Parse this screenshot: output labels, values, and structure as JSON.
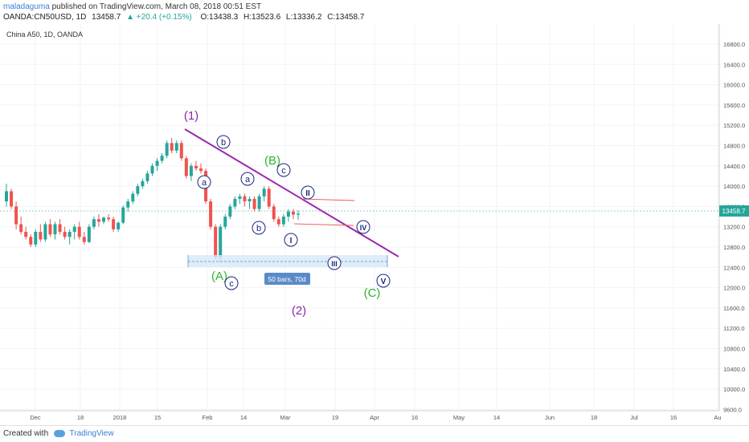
{
  "header": {
    "author": "maladaguma",
    "published": "published on TradingView.com, March 08, 2018 00:51 EST",
    "symbol": "OANDA:CN50USD, 1D",
    "last": "13458.7",
    "change": "+20.4 (+0.15%)",
    "open": "O:13438.3",
    "high": "H:13523.6",
    "low": "L:13336.2",
    "close": "C:13458.7"
  },
  "chart_title": "China A50, 1D, OANDA",
  "footer": {
    "created_with": "Created with",
    "brand": "TradingView"
  },
  "colors": {
    "up": "#26a69a",
    "down": "#ef5350",
    "trend": "#9c27b0",
    "wave_blue": "#1a237e",
    "green_label": "#2db52d",
    "purple_label": "#8e24aa"
  },
  "chart_data": {
    "type": "candlestick",
    "y_ticks": [
      "16800.0",
      "16400.0",
      "16000.0",
      "15600.0",
      "15200.0",
      "14800.0",
      "14400.0",
      "14000.0",
      "13600.0",
      "13200.0",
      "12800.0",
      "12400.0",
      "12000.0",
      "11600.0",
      "11200.0",
      "10800.0",
      "10400.0",
      "10000.0",
      "9600.0"
    ],
    "x_ticks": [
      "Dec",
      "18",
      "2018",
      "15",
      "Feb",
      "14",
      "Mar",
      "19",
      "Apr",
      "16",
      "May",
      "14",
      "Jun",
      "18",
      "Jul",
      "16",
      "Au"
    ],
    "last_price_label": "13458.7",
    "ylim": [
      9400,
      17000
    ],
    "grid": true,
    "candles": [
      {
        "o": 13700,
        "h": 14050,
        "l": 13600,
        "c": 13900
      },
      {
        "o": 13900,
        "h": 13950,
        "l": 13550,
        "c": 13600
      },
      {
        "o": 13600,
        "h": 13700,
        "l": 13150,
        "c": 13250
      },
      {
        "o": 13250,
        "h": 13400,
        "l": 13050,
        "c": 13100
      },
      {
        "o": 13100,
        "h": 13200,
        "l": 12950,
        "c": 13000
      },
      {
        "o": 13000,
        "h": 13050,
        "l": 12800,
        "c": 12850
      },
      {
        "o": 12850,
        "h": 13150,
        "l": 12800,
        "c": 13100
      },
      {
        "o": 13100,
        "h": 13250,
        "l": 12900,
        "c": 12950
      },
      {
        "o": 12950,
        "h": 13300,
        "l": 12900,
        "c": 13250
      },
      {
        "o": 13250,
        "h": 13350,
        "l": 13000,
        "c": 13050
      },
      {
        "o": 13050,
        "h": 13300,
        "l": 12950,
        "c": 13250
      },
      {
        "o": 13250,
        "h": 13350,
        "l": 13050,
        "c": 13100
      },
      {
        "o": 13100,
        "h": 13200,
        "l": 12950,
        "c": 13000
      },
      {
        "o": 13000,
        "h": 13150,
        "l": 12850,
        "c": 13100
      },
      {
        "o": 13100,
        "h": 13250,
        "l": 12950,
        "c": 13200
      },
      {
        "o": 13200,
        "h": 13300,
        "l": 12950,
        "c": 13000
      },
      {
        "o": 13000,
        "h": 13100,
        "l": 12850,
        "c": 12900
      },
      {
        "o": 12900,
        "h": 13250,
        "l": 12880,
        "c": 13200
      },
      {
        "o": 13200,
        "h": 13400,
        "l": 13150,
        "c": 13350
      },
      {
        "o": 13350,
        "h": 13450,
        "l": 13200,
        "c": 13300
      },
      {
        "o": 13300,
        "h": 13400,
        "l": 13250,
        "c": 13380
      },
      {
        "o": 13380,
        "h": 13450,
        "l": 13300,
        "c": 13350
      },
      {
        "o": 13350,
        "h": 13400,
        "l": 13100,
        "c": 13150
      },
      {
        "o": 13150,
        "h": 13300,
        "l": 13100,
        "c": 13280
      },
      {
        "o": 13280,
        "h": 13620,
        "l": 13250,
        "c": 13580
      },
      {
        "o": 13580,
        "h": 13750,
        "l": 13500,
        "c": 13700
      },
      {
        "o": 13700,
        "h": 13900,
        "l": 13650,
        "c": 13850
      },
      {
        "o": 13850,
        "h": 14050,
        "l": 13800,
        "c": 14000
      },
      {
        "o": 14000,
        "h": 14150,
        "l": 13950,
        "c": 14100
      },
      {
        "o": 14100,
        "h": 14300,
        "l": 14050,
        "c": 14250
      },
      {
        "o": 14250,
        "h": 14450,
        "l": 14200,
        "c": 14400
      },
      {
        "o": 14400,
        "h": 14550,
        "l": 14300,
        "c": 14500
      },
      {
        "o": 14500,
        "h": 14650,
        "l": 14450,
        "c": 14600
      },
      {
        "o": 14600,
        "h": 14900,
        "l": 14550,
        "c": 14850
      },
      {
        "o": 14850,
        "h": 14950,
        "l": 14650,
        "c": 14700
      },
      {
        "o": 14700,
        "h": 14900,
        "l": 14650,
        "c": 14850
      },
      {
        "o": 14850,
        "h": 14900,
        "l": 14500,
        "c": 14550
      },
      {
        "o": 14550,
        "h": 14600,
        "l": 14150,
        "c": 14200
      },
      {
        "o": 14200,
        "h": 14450,
        "l": 14100,
        "c": 14400
      },
      {
        "o": 14400,
        "h": 14500,
        "l": 14300,
        "c": 14350
      },
      {
        "o": 14350,
        "h": 14450,
        "l": 14250,
        "c": 14300
      },
      {
        "o": 14300,
        "h": 14350,
        "l": 13650,
        "c": 13700
      },
      {
        "o": 13700,
        "h": 13750,
        "l": 13150,
        "c": 13200
      },
      {
        "o": 13200,
        "h": 13250,
        "l": 12550,
        "c": 12600
      },
      {
        "o": 12600,
        "h": 13250,
        "l": 12500,
        "c": 13200
      },
      {
        "o": 13200,
        "h": 13450,
        "l": 13150,
        "c": 13400
      },
      {
        "o": 13400,
        "h": 13650,
        "l": 13350,
        "c": 13600
      },
      {
        "o": 13600,
        "h": 13800,
        "l": 13550,
        "c": 13750
      },
      {
        "o": 13750,
        "h": 13850,
        "l": 13650,
        "c": 13800
      },
      {
        "o": 13800,
        "h": 13850,
        "l": 13600,
        "c": 13700
      },
      {
        "o": 13700,
        "h": 13800,
        "l": 13550,
        "c": 13750
      },
      {
        "o": 13750,
        "h": 13800,
        "l": 13500,
        "c": 13550
      },
      {
        "o": 13550,
        "h": 13850,
        "l": 13500,
        "c": 13800
      },
      {
        "o": 13800,
        "h": 14000,
        "l": 13700,
        "c": 13950
      },
      {
        "o": 13950,
        "h": 14000,
        "l": 13550,
        "c": 13600
      },
      {
        "o": 13600,
        "h": 13650,
        "l": 13300,
        "c": 13350
      },
      {
        "o": 13350,
        "h": 13400,
        "l": 13200,
        "c": 13250
      },
      {
        "o": 13250,
        "h": 13450,
        "l": 13200,
        "c": 13400
      },
      {
        "o": 13400,
        "h": 13550,
        "l": 13300,
        "c": 13500
      },
      {
        "o": 13500,
        "h": 13550,
        "l": 13350,
        "c": 13438
      },
      {
        "o": 13438,
        "h": 13524,
        "l": 13336,
        "c": 13459
      }
    ]
  },
  "annotations": {
    "wave1": "(1)",
    "wave2": "(2)",
    "waveA": "(A)",
    "waveB": "(B)",
    "waveC": "(C)",
    "a1": "a",
    "b1": "b",
    "c1": "c",
    "a2": "a",
    "b2": "b",
    "c2": "c",
    "ii": "II",
    "i": "I",
    "iii": "III",
    "iv": "IV",
    "v": "V",
    "range_label": "50 bars, 70d"
  }
}
